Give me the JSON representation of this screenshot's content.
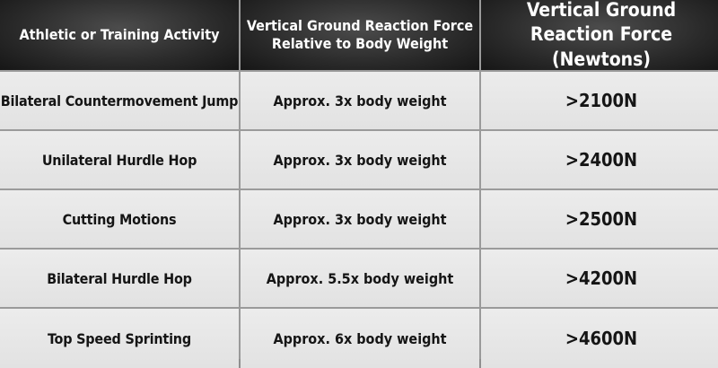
{
  "table": {
    "headers": [
      "Athletic or Training Activity",
      "Vertical Ground Reaction Force Relative to Body Weight",
      "Vertical Ground Reaction Force (Newtons)"
    ],
    "rows": [
      [
        "Bilateral Countermovement Jump",
        "Approx. 3x body weight",
        ">2100N"
      ],
      [
        "Unilateral Hurdle Hop",
        "Approx. 3x body weight",
        ">2400N"
      ],
      [
        "Cutting Motions",
        "Approx. 3x body weight",
        ">2500N"
      ],
      [
        "Bilateral Hurdle Hop",
        "Approx. 5.5x body weight",
        ">4200N"
      ],
      [
        "Top Speed Sprinting",
        "Approx. 6x body weight",
        ">4600N"
      ]
    ]
  }
}
